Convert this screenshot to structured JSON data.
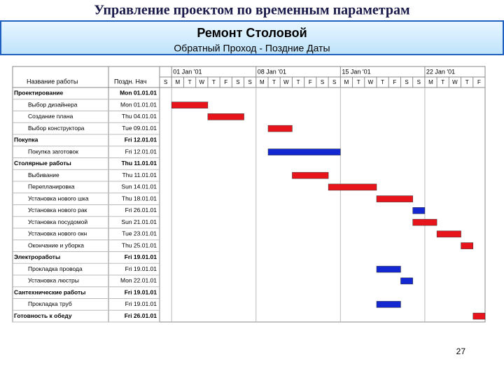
{
  "header": {
    "title": "Управление проектом по временным параметрам",
    "project": "Ремонт Столовой",
    "subtitle": "Обратный Проход - Поздние Даты"
  },
  "table": {
    "columns": [
      "Название работы",
      "Поздн. Нач"
    ],
    "weeks": [
      {
        "label": "01 Jan '01",
        "day": 1
      },
      {
        "label": "08 Jan '01",
        "day": 8
      },
      {
        "label": "15 Jan '01",
        "day": 15
      },
      {
        "label": "22 Jan '01",
        "day": 22
      }
    ],
    "days": [
      "S",
      "M",
      "T",
      "W",
      "T",
      "F",
      "S",
      "S",
      "M",
      "T",
      "W",
      "T",
      "F",
      "S",
      "S",
      "M",
      "T",
      "W",
      "T",
      "F",
      "S",
      "S",
      "M",
      "T",
      "W",
      "T",
      "F"
    ],
    "rows": [
      {
        "name": "Проектирование",
        "start": "Mon 01.01.01",
        "summary": true
      },
      {
        "name": "Выбор дизайнера",
        "start": "Mon 01.01.01",
        "bar": {
          "start": 1,
          "days": 3,
          "color": "#e8141c"
        }
      },
      {
        "name": "Создание плана",
        "start": "Thu 04.01.01",
        "bar": {
          "start": 4,
          "days": 3,
          "color": "#e8141c"
        }
      },
      {
        "name": "Выбор конструктора",
        "start": "Tue 09.01.01",
        "bar": {
          "start": 9,
          "days": 2,
          "color": "#e8141c"
        }
      },
      {
        "name": "Покупка",
        "start": "Fri 12.01.01",
        "summary": true
      },
      {
        "name": "Покупка заготовок",
        "start": "Fri 12.01.01",
        "bar": {
          "start": 9,
          "days": 6,
          "color": "#1428d2"
        }
      },
      {
        "name": "Столярные работы",
        "start": "Thu 11.01.01",
        "summary": true
      },
      {
        "name": "Выбивание",
        "start": "Thu 11.01.01",
        "bar": {
          "start": 11,
          "days": 3,
          "color": "#e8141c"
        }
      },
      {
        "name": "Перепланировка",
        "start": "Sun 14.01.01",
        "bar": {
          "start": 14,
          "days": 4,
          "color": "#e8141c"
        }
      },
      {
        "name": "Установка нового шка",
        "start": "Thu 18.01.01",
        "bar": {
          "start": 18,
          "days": 3,
          "color": "#e8141c"
        }
      },
      {
        "name": "Установка нового рак",
        "start": "Fri 26.01.01",
        "bar": {
          "start": 21,
          "days": 1,
          "color": "#1428d2"
        }
      },
      {
        "name": "Установка посудомой",
        "start": "Sun 21.01.01",
        "bar": {
          "start": 21,
          "days": 2,
          "color": "#e8141c"
        }
      },
      {
        "name": "Установка нового окн",
        "start": "Tue 23.01.01",
        "bar": {
          "start": 23,
          "days": 2,
          "color": "#e8141c"
        }
      },
      {
        "name": "Окончание и уборка",
        "start": "Thu 25.01.01",
        "bar": {
          "start": 25,
          "days": 1,
          "color": "#e8141c"
        }
      },
      {
        "name": "Электроработы",
        "start": "Fri 19.01.01",
        "summary": true
      },
      {
        "name": "Прокладка провода",
        "start": "Fri 19.01.01",
        "bar": {
          "start": 18,
          "days": 2,
          "color": "#1428d2"
        }
      },
      {
        "name": "Установка люстры",
        "start": "Mon 22.01.01",
        "bar": {
          "start": 20,
          "days": 1,
          "color": "#1428d2"
        }
      },
      {
        "name": "Сантехнические работы",
        "start": "Fri 19.01.01",
        "summary": true
      },
      {
        "name": "Прокладка труб",
        "start": "Fri 19.01.01",
        "bar": {
          "start": 18,
          "days": 2,
          "color": "#1428d2"
        }
      },
      {
        "name": "Готовность к обеду",
        "start": "Fri 26.01.01",
        "summary": true,
        "bar": {
          "start": 26,
          "days": 1,
          "color": "#e8141c"
        }
      }
    ]
  },
  "page_number": "27"
}
